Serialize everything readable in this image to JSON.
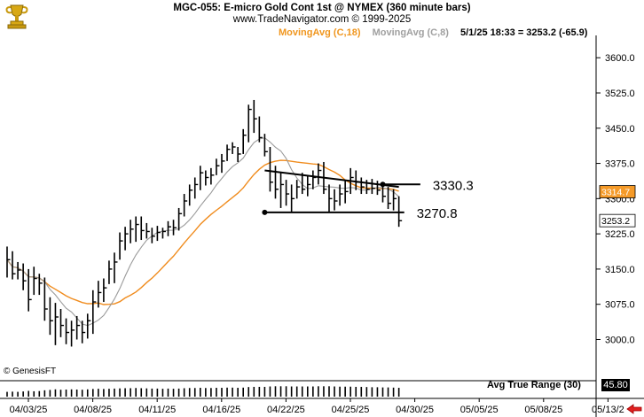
{
  "header": {
    "title": "MGC-055:  E-micro Gold Cont 1st @ NYMEX  (360 minute bars)",
    "subtitle": "www.TradeNavigator.com © 1999-2025",
    "ma_fast_label": "MovingAvg (C,18)",
    "ma_slow_label": "MovingAvg (C,8)",
    "last_bar": "5/1/25 18:33 = 3253.2 (-65.9)"
  },
  "footer": {
    "copyright": "© GenesisFT",
    "atr_label": "Avg True Range (30)",
    "atr_value": "45.80"
  },
  "colors": {
    "ma18": "#f08c1e",
    "ma8": "#9a9a9a",
    "ma18_text": "#f0961e",
    "ma8_text": "#a0a0a0",
    "bars": "#000000",
    "price_box": "#f59a28"
  },
  "chart_data": {
    "type": "ohlc",
    "ylim": [
      2950,
      3640
    ],
    "yticks": [
      3000.0,
      3075.0,
      3150.0,
      3225.0,
      3300.0,
      3375.0,
      3450.0,
      3525.0,
      3600.0
    ],
    "date_labels": [
      "04/03/25",
      "04/08/25",
      "04/11/25",
      "04/16/25",
      "04/22/25",
      "04/25/25",
      "04/30/25",
      "05/05/25",
      "05/08/25",
      "05/13/2"
    ],
    "bars": [
      {
        "h": 3198,
        "l": 3132,
        "c": 3170
      },
      {
        "h": 3188,
        "l": 3128,
        "c": 3140
      },
      {
        "h": 3165,
        "l": 3128,
        "c": 3148
      },
      {
        "h": 3162,
        "l": 3105,
        "c": 3125
      },
      {
        "h": 3150,
        "l": 3060,
        "c": 3085
      },
      {
        "h": 3155,
        "l": 3095,
        "c": 3130
      },
      {
        "h": 3140,
        "l": 3095,
        "c": 3120
      },
      {
        "h": 3132,
        "l": 3040,
        "c": 3065
      },
      {
        "h": 3090,
        "l": 3010,
        "c": 3040
      },
      {
        "h": 3078,
        "l": 2988,
        "c": 3048
      },
      {
        "h": 3065,
        "l": 3005,
        "c": 3030
      },
      {
        "h": 3045,
        "l": 2990,
        "c": 3015
      },
      {
        "h": 3040,
        "l": 2985,
        "c": 3020
      },
      {
        "h": 3050,
        "l": 3000,
        "c": 3030
      },
      {
        "h": 3040,
        "l": 2992,
        "c": 3015
      },
      {
        "h": 3055,
        "l": 3002,
        "c": 3040
      },
      {
        "h": 3105,
        "l": 3012,
        "c": 3080
      },
      {
        "h": 3125,
        "l": 3068,
        "c": 3100
      },
      {
        "h": 3130,
        "l": 3080,
        "c": 3110
      },
      {
        "h": 3168,
        "l": 3118,
        "c": 3150
      },
      {
        "h": 3185,
        "l": 3120,
        "c": 3165
      },
      {
        "h": 3228,
        "l": 3170,
        "c": 3210
      },
      {
        "h": 3240,
        "l": 3190,
        "c": 3225
      },
      {
        "h": 3255,
        "l": 3205,
        "c": 3235
      },
      {
        "h": 3262,
        "l": 3208,
        "c": 3245
      },
      {
        "h": 3262,
        "l": 3212,
        "c": 3232
      },
      {
        "h": 3248,
        "l": 3215,
        "c": 3230
      },
      {
        "h": 3238,
        "l": 3205,
        "c": 3220
      },
      {
        "h": 3242,
        "l": 3210,
        "c": 3228
      },
      {
        "h": 3238,
        "l": 3215,
        "c": 3230
      },
      {
        "h": 3252,
        "l": 3220,
        "c": 3240
      },
      {
        "h": 3255,
        "l": 3222,
        "c": 3238
      },
      {
        "h": 3280,
        "l": 3232,
        "c": 3268
      },
      {
        "h": 3310,
        "l": 3262,
        "c": 3295
      },
      {
        "h": 3330,
        "l": 3285,
        "c": 3318
      },
      {
        "h": 3345,
        "l": 3300,
        "c": 3330
      },
      {
        "h": 3370,
        "l": 3318,
        "c": 3355
      },
      {
        "h": 3360,
        "l": 3328,
        "c": 3345
      },
      {
        "h": 3365,
        "l": 3330,
        "c": 3350
      },
      {
        "h": 3385,
        "l": 3350,
        "c": 3370
      },
      {
        "h": 3395,
        "l": 3355,
        "c": 3380
      },
      {
        "h": 3415,
        "l": 3380,
        "c": 3405
      },
      {
        "h": 3420,
        "l": 3395,
        "c": 3410
      },
      {
        "h": 3410,
        "l": 3378,
        "c": 3395
      },
      {
        "h": 3448,
        "l": 3395,
        "c": 3435
      },
      {
        "h": 3500,
        "l": 3420,
        "c": 3490
      },
      {
        "h": 3510,
        "l": 3440,
        "c": 3470
      },
      {
        "h": 3475,
        "l": 3420,
        "c": 3430
      },
      {
        "h": 3438,
        "l": 3390,
        "c": 3400
      },
      {
        "h": 3410,
        "l": 3315,
        "c": 3335
      },
      {
        "h": 3370,
        "l": 3300,
        "c": 3320
      },
      {
        "h": 3355,
        "l": 3280,
        "c": 3330
      },
      {
        "h": 3340,
        "l": 3285,
        "c": 3310
      },
      {
        "h": 3330,
        "l": 3270,
        "c": 3300
      },
      {
        "h": 3340,
        "l": 3300,
        "c": 3325
      },
      {
        "h": 3355,
        "l": 3310,
        "c": 3320
      },
      {
        "h": 3350,
        "l": 3305,
        "c": 3330
      },
      {
        "h": 3360,
        "l": 3320,
        "c": 3345
      },
      {
        "h": 3375,
        "l": 3330,
        "c": 3360
      },
      {
        "h": 3378,
        "l": 3310,
        "c": 3320
      },
      {
        "h": 3330,
        "l": 3272,
        "c": 3300
      },
      {
        "h": 3320,
        "l": 3275,
        "c": 3295
      },
      {
        "h": 3330,
        "l": 3285,
        "c": 3310
      },
      {
        "h": 3340,
        "l": 3290,
        "c": 3315
      },
      {
        "h": 3365,
        "l": 3310,
        "c": 3345
      },
      {
        "h": 3360,
        "l": 3318,
        "c": 3335
      },
      {
        "h": 3345,
        "l": 3310,
        "c": 3325
      },
      {
        "h": 3340,
        "l": 3310,
        "c": 3320
      },
      {
        "h": 3342,
        "l": 3310,
        "c": 3322
      },
      {
        "h": 3338,
        "l": 3308,
        "c": 3318
      },
      {
        "h": 3330,
        "l": 3292,
        "c": 3305
      },
      {
        "h": 3325,
        "l": 3278,
        "c": 3290
      },
      {
        "h": 3320,
        "l": 3275,
        "c": 3300
      },
      {
        "h": 3305,
        "l": 3240,
        "c": 3253
      }
    ],
    "moving_averages": [
      {
        "name": "MovingAvg (C,18)",
        "period": 18
      },
      {
        "name": "MovingAvg (C,8)",
        "period": 8
      }
    ],
    "annotations": [
      {
        "type": "trendline",
        "from": {
          "bar": 48,
          "price": 3360
        },
        "to": {
          "bar": 73,
          "price": 3325
        }
      },
      {
        "type": "horizontal",
        "from_bar": 48,
        "to_bar": 74,
        "price": 3270.8,
        "label": "3270.8"
      },
      {
        "type": "horizontal",
        "from_bar": 70,
        "to_bar": 77,
        "price": 3330.3,
        "label": "3330.3"
      },
      {
        "type": "dot",
        "bar": 48,
        "price": 3270.8
      },
      {
        "type": "dot",
        "bar": 70,
        "price": 3330.3
      }
    ],
    "price_boxes": [
      {
        "label": "3314.7",
        "price": 3314.7,
        "style": "orange"
      },
      {
        "label": "3253.2",
        "price": 3253.2,
        "style": "white"
      }
    ],
    "atr_bars": [
      25,
      26,
      25,
      27,
      30,
      28,
      29,
      33,
      35,
      38,
      36,
      37,
      38,
      37,
      36,
      38,
      40,
      41,
      40,
      41,
      42,
      43,
      44,
      44,
      45,
      44,
      43,
      42,
      42,
      41,
      42,
      41,
      42,
      44,
      45,
      45,
      46,
      45,
      45,
      46,
      46,
      47,
      47,
      46,
      47,
      50,
      51,
      51,
      51,
      53,
      54,
      54,
      54,
      53,
      53,
      53,
      53,
      53,
      54,
      54,
      54,
      53,
      52,
      52,
      52,
      51,
      51,
      50,
      49,
      49,
      48,
      48,
      47,
      46
    ]
  }
}
